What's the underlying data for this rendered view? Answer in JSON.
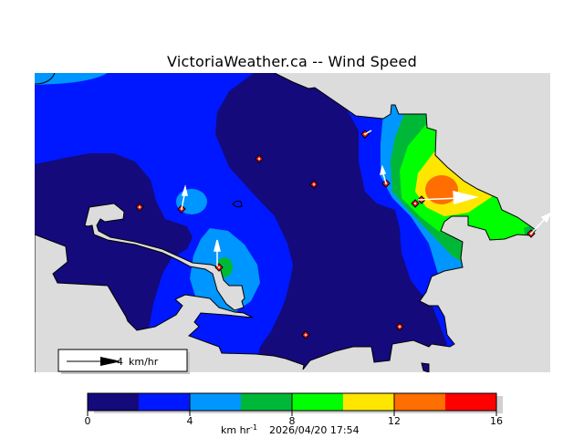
{
  "title": "VictoriaWeather.ca -- Wind Speed",
  "colors": {
    "water": "#dcdcdc",
    "c0": "#140a7c",
    "c1": "#0018ff",
    "c2": "#0096ff",
    "c3": "#00b838",
    "c4": "#00ff00",
    "c5": "#ffe600",
    "c6": "#ff6e00",
    "c7": "#ff0000",
    "station": "#ff2020"
  },
  "reference_arrow": {
    "value": "4",
    "unit": "km/hr"
  },
  "colorbar": {
    "min": 0,
    "max": 16,
    "step": 2,
    "colors": [
      "#140a7c",
      "#0018ff",
      "#0096ff",
      "#00b838",
      "#00ff00",
      "#ffe600",
      "#ff6e00",
      "#ff0000"
    ],
    "tick_labels": [
      "0",
      "4",
      "8",
      "12",
      "16"
    ],
    "unit_base": "km hr",
    "unit_exp": "-1",
    "timestamp": "2026/04/20 17:54"
  }
}
